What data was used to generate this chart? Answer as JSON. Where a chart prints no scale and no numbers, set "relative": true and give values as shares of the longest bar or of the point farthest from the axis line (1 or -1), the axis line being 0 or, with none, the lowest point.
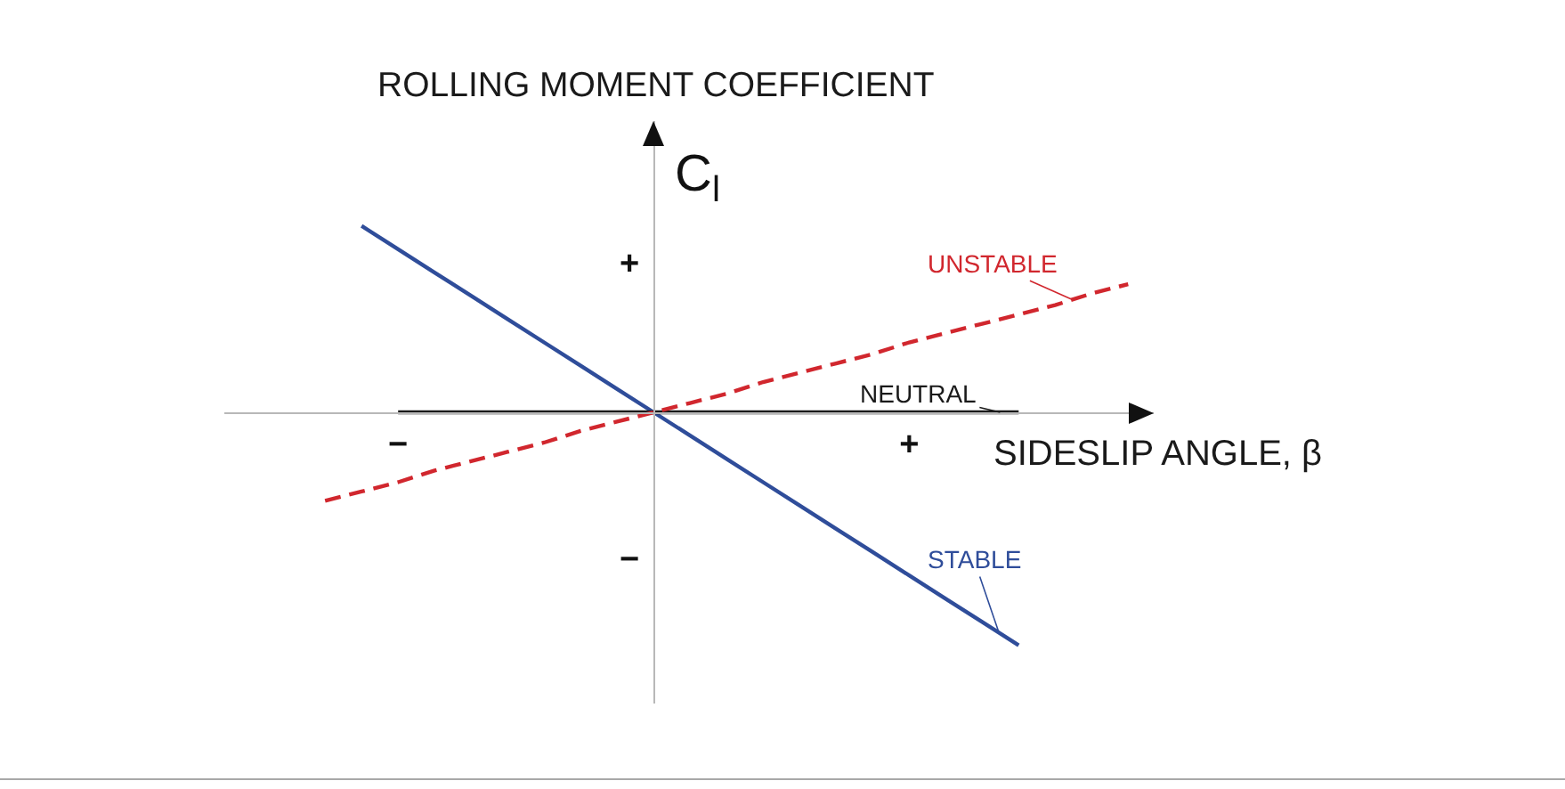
{
  "chart_data": {
    "type": "line",
    "relative": true,
    "ylabel": "ROLLING MOMENT COEFFICIENT",
    "xlabel": "SIDESLIP ANGLE, β",
    "annotations": [
      "C$_{l}$",
      "+",
      "−"
    ],
    "categories": [
      null,
      null,
      "−",
      null,
      null,
      null,
      null,
      null,
      null,
      null,
      null,
      null,
      null,
      null,
      null,
      null,
      "+",
      null,
      null,
      null,
      null,
      null,
      null
    ],
    "series": [
      {
        "name": "STABLE",
        "color": "#2f4d9a",
        "values": [
          null,
          0.8,
          0.7,
          0.6,
          0.5,
          0.4,
          0.3,
          0.2,
          0.1,
          0,
          -0.1,
          -0.2,
          -0.3,
          -0.4,
          -0.5,
          -0.6,
          -0.7,
          -0.8,
          -0.9,
          -1,
          null,
          null,
          null
        ]
      },
      {
        "name": "NEUTRAL",
        "color": "#1a1a1a",
        "values": [
          null,
          null,
          0,
          0,
          0,
          0,
          0,
          0,
          0,
          0,
          0,
          0,
          0,
          0,
          0,
          0,
          0,
          0,
          0,
          0,
          null,
          null,
          null
        ]
      },
      {
        "name": "UNSTABLE",
        "color": "#d1272e",
        "line_style": "dashed",
        "values": [
          -0.38,
          -0.34,
          -0.3,
          -0.25,
          -0.21,
          -0.17,
          -0.13,
          -0.08,
          -0.04,
          0,
          0.04,
          0.08,
          0.13,
          0.17,
          0.21,
          0.25,
          0.3,
          0.34,
          0.38,
          0.42,
          0.46,
          0.51,
          0.55
        ]
      }
    ]
  }
}
